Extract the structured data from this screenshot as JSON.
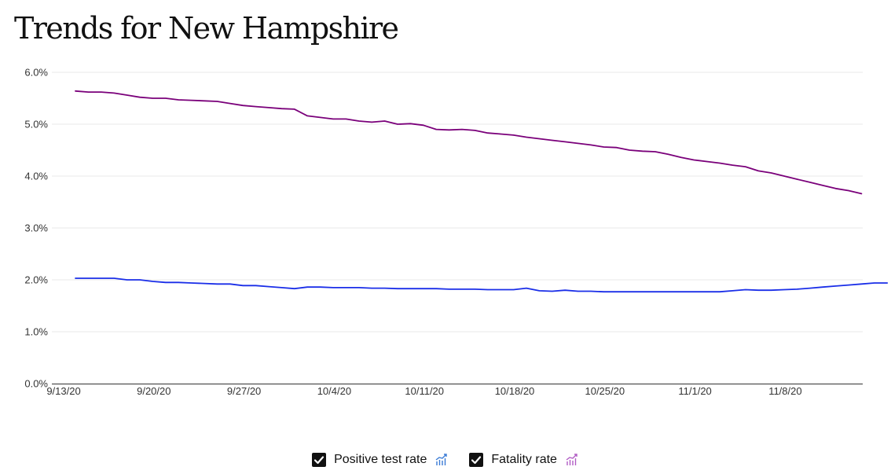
{
  "page": {
    "title": "Trends for New Hampshire"
  },
  "legend": {
    "items": [
      {
        "label": "Positive test rate",
        "checked": true,
        "color": "#1a2ee8",
        "icon": "chart-trend-icon"
      },
      {
        "label": "Fatality rate",
        "checked": true,
        "color": "#7a007a",
        "icon": "chart-trend-icon"
      }
    ]
  },
  "chart_data": {
    "type": "line",
    "x_ticks": [
      "9/13/20",
      "9/20/20",
      "9/27/20",
      "10/4/20",
      "10/11/20",
      "10/18/20",
      "10/25/20",
      "11/1/20",
      "11/8/20"
    ],
    "y_ticks": [
      "0.0%",
      "1.0%",
      "2.0%",
      "3.0%",
      "4.0%",
      "5.0%",
      "6.0%"
    ],
    "ylim": [
      0,
      6
    ],
    "grid": "horizontal",
    "series": [
      {
        "name": "Positive test rate",
        "color": "#1a2ee8",
        "values": [
          2.03,
          2.03,
          2.03,
          2.03,
          2.0,
          2.0,
          1.97,
          1.95,
          1.95,
          1.94,
          1.93,
          1.92,
          1.92,
          1.89,
          1.89,
          1.87,
          1.85,
          1.83,
          1.86,
          1.86,
          1.85,
          1.85,
          1.85,
          1.84,
          1.84,
          1.83,
          1.83,
          1.83,
          1.83,
          1.82,
          1.82,
          1.82,
          1.81,
          1.81,
          1.81,
          1.84,
          1.79,
          1.78,
          1.8,
          1.78,
          1.78,
          1.77,
          1.77,
          1.77,
          1.77,
          1.77,
          1.77,
          1.77,
          1.77,
          1.77,
          1.77,
          1.79,
          1.81,
          1.8,
          1.8,
          1.81,
          1.82,
          1.84,
          1.86,
          1.88,
          1.9,
          1.92,
          1.94,
          1.94
        ]
      },
      {
        "name": "Fatality rate",
        "color": "#7a007a",
        "values": [
          5.64,
          5.62,
          5.62,
          5.6,
          5.56,
          5.52,
          5.5,
          5.5,
          5.47,
          5.46,
          5.45,
          5.44,
          5.4,
          5.36,
          5.34,
          5.32,
          5.3,
          5.29,
          5.16,
          5.13,
          5.1,
          5.1,
          5.06,
          5.04,
          5.06,
          5.0,
          5.01,
          4.98,
          4.9,
          4.89,
          4.9,
          4.88,
          4.83,
          4.81,
          4.79,
          4.75,
          4.72,
          4.69,
          4.66,
          4.63,
          4.6,
          4.56,
          4.55,
          4.5,
          4.48,
          4.47,
          4.42,
          4.36,
          4.31,
          4.28,
          4.25,
          4.21,
          4.18,
          4.1,
          4.06,
          4.0,
          3.94,
          3.88,
          3.82,
          3.76,
          3.72,
          3.66
        ]
      }
    ]
  }
}
